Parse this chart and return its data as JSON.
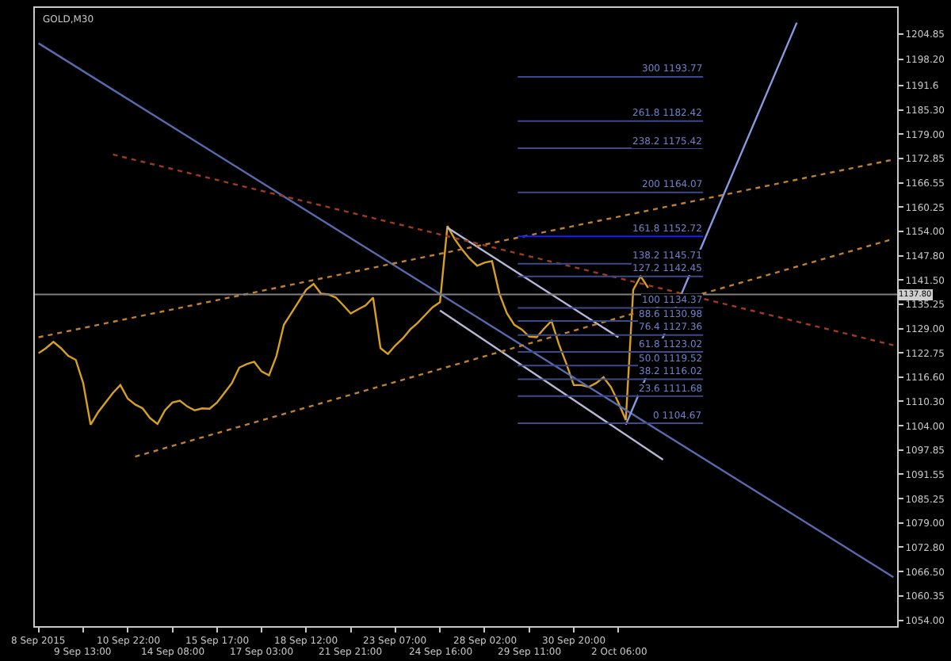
{
  "chart_data": {
    "type": "line",
    "title": "GOLD,M30",
    "categories": [
      "8 Sep 2015",
      null,
      null,
      null,
      null,
      null,
      "9 Sep 13:00",
      null,
      null,
      null,
      null,
      null,
      "10 Sep 22:00",
      null,
      null,
      null,
      null,
      null,
      "14 Sep 08:00",
      null,
      null,
      null,
      null,
      null,
      "15 Sep 17:00",
      null,
      null,
      null,
      null,
      null,
      "17 Sep 03:00",
      null,
      null,
      null,
      null,
      null,
      "18 Sep 12:00",
      null,
      null,
      null,
      null,
      null,
      "21 Sep 21:00",
      null,
      null,
      null,
      null,
      null,
      "23 Sep 07:00",
      null,
      null,
      null,
      null,
      null,
      "24 Sep 16:00",
      null,
      null,
      null,
      null,
      null,
      "28 Sep 02:00",
      null,
      null,
      null,
      null,
      null,
      "29 Sep 11:00",
      null,
      null,
      null,
      null,
      null,
      "30 Sep 20:00",
      null,
      null,
      null,
      null,
      null,
      "2 Oct 06:00",
      null,
      null,
      null,
      null,
      null,
      null,
      null,
      null,
      null,
      null,
      null,
      null,
      null,
      null,
      null,
      null,
      null,
      null,
      null,
      null,
      null,
      null,
      null,
      null,
      null,
      null,
      null,
      null,
      null,
      null,
      null,
      null,
      null,
      null,
      null,
      null,
      null
    ],
    "series": [
      {
        "color": "#d8a020",
        "line_style": "solid",
        "values": [
          1122.7,
          1124.0,
          1125.6,
          1124.0,
          1122.0,
          1121.0,
          1115.0,
          1104.3,
          1107.5,
          1110.0,
          1112.5,
          1114.5,
          1111.0,
          1109.5,
          1108.5,
          1106.0,
          1104.5,
          1108.0,
          1110.0,
          1110.5,
          1109.0,
          1108.0,
          1108.5,
          1108.4,
          1110.0,
          1112.5,
          1115.0,
          1119.0,
          1119.9,
          1120.5,
          1118.0,
          1117.0,
          1122.0,
          1130.0,
          1133.0,
          1136.0,
          1139.0,
          1140.5,
          1138.0,
          1137.8,
          1137.0,
          1135.0,
          1132.9,
          1134.0,
          1135.0,
          1137.0,
          1124.0,
          1122.5,
          1124.7,
          1126.5,
          1128.8,
          1130.5,
          1132.5,
          1134.5,
          1135.8,
          1155.4,
          1152.0,
          1149.3,
          1147.0,
          1145.2,
          1146.0,
          1146.4,
          1138.0,
          1133.0,
          1130.0,
          1128.8,
          1127.0,
          1126.8,
          1129.0,
          1131.0,
          1125.0,
          1120.0,
          1114.5,
          1114.5,
          1114.0,
          1115.0,
          1116.5,
          1114.0,
          1110.0,
          1105.5,
          1139.0,
          1142.5,
          1139.5,
          null,
          null,
          null,
          null,
          null,
          null,
          null,
          null,
          null,
          null,
          null,
          null,
          null,
          null,
          null,
          null,
          null,
          null,
          null,
          null,
          null,
          null,
          null,
          null,
          null,
          null,
          null,
          null,
          null,
          null,
          null,
          null,
          null
        ]
      },
      {
        "color": "#b8b8d8",
        "line_style": "solid",
        "values": [
          null,
          null,
          null,
          null,
          null,
          null,
          null,
          null,
          null,
          null,
          null,
          null,
          null,
          null,
          null,
          null,
          null,
          null,
          null,
          null,
          null,
          null,
          null,
          null,
          null,
          null,
          null,
          null,
          null,
          null,
          null,
          null,
          null,
          null,
          null,
          null,
          null,
          null,
          null,
          null,
          null,
          null,
          null,
          null,
          null,
          null,
          null,
          null,
          null,
          null,
          null,
          null,
          null,
          null,
          null,
          1155.0,
          null,
          null,
          null,
          null,
          null,
          null,
          null,
          null,
          null,
          null,
          null,
          null,
          null,
          null,
          null,
          null,
          null,
          null,
          null,
          null,
          null,
          null,
          1126.8,
          null,
          null,
          null,
          null,
          null,
          null,
          null,
          null,
          null,
          null,
          null,
          null,
          null,
          null,
          null,
          null,
          null,
          null,
          null,
          null,
          null,
          null,
          null,
          null,
          null,
          null,
          null,
          null,
          null,
          null,
          null,
          null,
          null,
          null,
          null,
          null,
          null
        ]
      },
      {
        "color": "#b8b8d8",
        "line_style": "solid",
        "values": [
          null,
          null,
          null,
          null,
          null,
          null,
          null,
          null,
          null,
          null,
          null,
          null,
          null,
          null,
          null,
          null,
          null,
          null,
          null,
          null,
          null,
          null,
          null,
          null,
          null,
          null,
          null,
          null,
          null,
          null,
          null,
          null,
          null,
          null,
          null,
          null,
          null,
          null,
          null,
          null,
          null,
          null,
          null,
          null,
          null,
          null,
          null,
          null,
          null,
          null,
          null,
          null,
          null,
          null,
          1133.7,
          null,
          null,
          null,
          null,
          null,
          null,
          null,
          null,
          null,
          null,
          null,
          null,
          null,
          null,
          null,
          null,
          null,
          null,
          null,
          null,
          null,
          null,
          null,
          null,
          null,
          null,
          null,
          null,
          null,
          1095.3,
          null,
          null,
          null,
          null,
          null,
          null,
          null,
          null,
          null,
          null,
          null,
          null,
          null,
          null,
          null,
          null,
          null,
          null,
          null,
          null,
          null,
          null,
          null,
          null,
          null,
          null,
          null,
          null,
          null,
          null,
          null
        ]
      },
      {
        "color": "#5a6ab0",
        "line_style": "solid",
        "values": [
          1202.4,
          null,
          null,
          null,
          null,
          null,
          null,
          null,
          null,
          null,
          null,
          null,
          null,
          null,
          null,
          null,
          null,
          null,
          null,
          null,
          null,
          null,
          null,
          null,
          null,
          null,
          null,
          null,
          null,
          null,
          null,
          null,
          null,
          null,
          null,
          null,
          null,
          null,
          null,
          null,
          null,
          null,
          null,
          null,
          null,
          null,
          null,
          null,
          null,
          null,
          null,
          null,
          null,
          null,
          null,
          null,
          null,
          null,
          null,
          null,
          null,
          null,
          null,
          null,
          null,
          null,
          null,
          null,
          null,
          null,
          null,
          null,
          null,
          null,
          null,
          null,
          null,
          null,
          null,
          null,
          null,
          null,
          null,
          null,
          null,
          null,
          null,
          null,
          null,
          null,
          null,
          null,
          null,
          null,
          null,
          null,
          null,
          null,
          null,
          null,
          null,
          null,
          null,
          null,
          null,
          null,
          null,
          null,
          null,
          null,
          null,
          null,
          null,
          null,
          null,
          1065.1
        ]
      },
      {
        "color": "#8a9ae0",
        "line_style": "solid",
        "values": [
          null,
          null,
          null,
          null,
          null,
          null,
          null,
          null,
          null,
          null,
          null,
          null,
          null,
          null,
          null,
          null,
          null,
          null,
          null,
          null,
          null,
          null,
          null,
          null,
          null,
          null,
          null,
          null,
          null,
          null,
          null,
          null,
          null,
          null,
          null,
          null,
          null,
          null,
          null,
          null,
          null,
          null,
          null,
          null,
          null,
          null,
          null,
          null,
          null,
          null,
          null,
          null,
          null,
          null,
          null,
          null,
          null,
          null,
          null,
          null,
          null,
          null,
          null,
          null,
          null,
          null,
          null,
          null,
          null,
          null,
          null,
          null,
          null,
          null,
          null,
          null,
          null,
          null,
          null,
          1104.3,
          null,
          null,
          null,
          null,
          null,
          null,
          null,
          null,
          null,
          null,
          null,
          null,
          null,
          null,
          null,
          null,
          null,
          null,
          null,
          null,
          null,
          null,
          1207.7,
          null,
          null,
          null,
          null,
          null,
          null,
          null,
          null,
          null,
          null,
          null,
          null,
          null
        ]
      },
      {
        "color": "#c08030",
        "line_style": "dotted",
        "values": [
          1126.8,
          null,
          null,
          null,
          null,
          null,
          null,
          null,
          null,
          null,
          null,
          null,
          null,
          null,
          null,
          null,
          null,
          null,
          null,
          null,
          null,
          null,
          null,
          null,
          null,
          null,
          null,
          null,
          null,
          null,
          null,
          null,
          null,
          null,
          null,
          null,
          null,
          null,
          null,
          null,
          null,
          null,
          null,
          null,
          null,
          null,
          null,
          null,
          null,
          null,
          null,
          null,
          null,
          null,
          null,
          null,
          null,
          null,
          null,
          null,
          null,
          null,
          null,
          null,
          null,
          null,
          null,
          null,
          null,
          null,
          null,
          null,
          null,
          null,
          null,
          null,
          null,
          null,
          null,
          null,
          null,
          null,
          null,
          null,
          null,
          null,
          null,
          null,
          null,
          null,
          null,
          null,
          null,
          null,
          null,
          null,
          null,
          null,
          null,
          null,
          null,
          null,
          null,
          null,
          null,
          null,
          null,
          null,
          null,
          null,
          null,
          null,
          null,
          null,
          null,
          1172.5
        ]
      },
      {
        "color": "#c08030",
        "line_style": "dotted",
        "values": [
          null,
          null,
          null,
          null,
          null,
          null,
          null,
          null,
          null,
          null,
          null,
          null,
          null,
          1096.1,
          null,
          null,
          null,
          null,
          null,
          null,
          null,
          null,
          null,
          null,
          null,
          null,
          null,
          null,
          null,
          null,
          null,
          null,
          null,
          null,
          null,
          null,
          null,
          null,
          null,
          null,
          null,
          null,
          null,
          null,
          null,
          null,
          null,
          null,
          null,
          null,
          null,
          null,
          null,
          null,
          null,
          null,
          null,
          null,
          null,
          null,
          null,
          null,
          null,
          null,
          null,
          null,
          null,
          null,
          null,
          null,
          null,
          null,
          null,
          null,
          null,
          null,
          null,
          null,
          null,
          null,
          null,
          null,
          null,
          null,
          null,
          null,
          null,
          null,
          null,
          null,
          null,
          null,
          null,
          null,
          null,
          null,
          null,
          null,
          null,
          null,
          null,
          null,
          null,
          null,
          null,
          null,
          null,
          null,
          null,
          null,
          null,
          null,
          null,
          null,
          null,
          1152.1
        ]
      },
      {
        "color": "#a03a20",
        "line_style": "dotted",
        "values": [
          null,
          null,
          null,
          null,
          null,
          null,
          null,
          null,
          null,
          null,
          1173.8,
          null,
          null,
          null,
          null,
          null,
          null,
          null,
          null,
          null,
          null,
          null,
          null,
          null,
          null,
          null,
          null,
          null,
          null,
          null,
          null,
          null,
          null,
          null,
          null,
          null,
          null,
          null,
          null,
          null,
          null,
          null,
          null,
          null,
          null,
          null,
          null,
          null,
          null,
          null,
          null,
          null,
          null,
          null,
          null,
          null,
          null,
          null,
          null,
          null,
          null,
          null,
          null,
          null,
          null,
          null,
          null,
          null,
          null,
          null,
          null,
          null,
          null,
          null,
          null,
          null,
          null,
          null,
          null,
          null,
          null,
          null,
          null,
          null,
          null,
          null,
          null,
          null,
          null,
          null,
          null,
          null,
          null,
          null,
          null,
          null,
          null,
          null,
          null,
          null,
          null,
          null,
          null,
          null,
          null,
          null,
          null,
          null,
          null,
          null,
          null,
          null,
          null,
          null,
          null,
          1124.75
        ]
      }
    ],
    "ylim": [
      1052.5,
      1211.5
    ],
    "yticks": [
      1204.85,
      {
        "value": 1198.2,
        "label": "1198.20"
      },
      1191.6,
      {
        "value": 1185.3,
        "label": "1185.30"
      },
      {
        "value": 1179,
        "label": "1179.00"
      },
      1172.85,
      1166.55,
      1160.25,
      {
        "value": 1154,
        "label": "1154.00"
      },
      {
        "value": 1147.8,
        "label": "1147.80"
      },
      {
        "value": 1141.5,
        "label": "1141.50"
      },
      1135.25,
      {
        "value": 1129,
        "label": "1129.00"
      },
      1122.75,
      {
        "value": 1116.6,
        "label": "1116.60"
      },
      {
        "value": 1110.3,
        "label": "1110.30"
      },
      {
        "value": 1104,
        "label": "1104.00"
      },
      1097.85,
      1091.55,
      1085.25,
      {
        "value": 1079,
        "label": "1079.00"
      },
      {
        "value": 1072.8,
        "label": "1072.80"
      },
      {
        "value": 1066.5,
        "label": "1066.50"
      },
      1060.35,
      {
        "value": 1054,
        "label": "1054.00"
      }
    ],
    "ref_lines": [
      {
        "axis": "y",
        "value": 1104.67,
        "label": "0 1104.67",
        "color": "#3a4a8c"
      },
      {
        "axis": "y",
        "value": 1111.68,
        "label": "23.6 1111.68",
        "color": "#3a4a8c"
      },
      {
        "axis": "y",
        "value": 1116.02,
        "label": "38.2 1116.02",
        "color": "#3a4a8c"
      },
      {
        "axis": "y",
        "value": 1119.52,
        "label": "50.0 1119.52",
        "color": "#3a4a8c"
      },
      {
        "axis": "y",
        "value": 1123.02,
        "label": "61.8 1123.02",
        "color": "#3a4a8c"
      },
      {
        "axis": "y",
        "value": 1127.36,
        "label": "76.4 1127.36",
        "color": "#3a4a8c"
      },
      {
        "axis": "y",
        "value": 1130.98,
        "label": "88.6 1130.98",
        "color": "#3a4a8c"
      },
      {
        "axis": "y",
        "value": 1134.37,
        "label": "100 1134.37",
        "color": "#3a4a8c"
      },
      {
        "axis": "y",
        "value": 1142.45,
        "label": "127.2 1142.45",
        "color": "#3a4a8c"
      },
      {
        "axis": "y",
        "value": 1145.71,
        "label": "138.2 1145.71",
        "color": "#3a4a8c"
      },
      {
        "axis": "y",
        "value": 1152.72,
        "label": "161.8 1152.72",
        "color": "#1020ff"
      },
      {
        "axis": "y",
        "value": 1164.07,
        "label": "200 1164.07",
        "color": "#3a4a8c"
      },
      {
        "axis": "y",
        "value": 1175.42,
        "label": "238.2 1175.42",
        "color": "#3a4a8c"
      },
      {
        "axis": "y",
        "value": 1182.42,
        "label": "261.8 1182.42",
        "color": "#3a4a8c"
      },
      {
        "axis": "y",
        "value": 1193.77,
        "label": "300 1193.77",
        "color": "#3a4a8c"
      },
      {
        "axis": "y",
        "value": 1137.8,
        "label": "1137.80",
        "color": "#808080"
      }
    ],
    "grid": false,
    "marker": "none"
  }
}
